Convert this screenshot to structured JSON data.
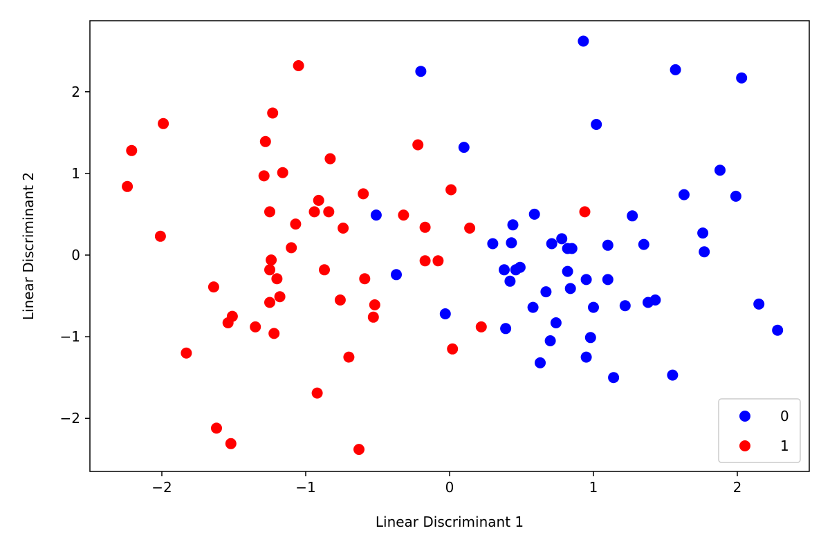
{
  "chart_data": {
    "type": "scatter",
    "xlabel": "Linear Discriminant 1",
    "ylabel": "Linear Discriminant 2",
    "xlim": [
      -2.5,
      2.5
    ],
    "ylim": [
      -2.65,
      2.87
    ],
    "xticks": [
      -2,
      -1,
      0,
      1,
      2
    ],
    "yticks": [
      -2,
      -1,
      0,
      1,
      2
    ],
    "xtick_labels": [
      "−2",
      "−1",
      "0",
      "1",
      "2"
    ],
    "ytick_labels": [
      "−2",
      "−1",
      "0",
      "1",
      "2"
    ],
    "legend_placement": "lower-right",
    "grid": false,
    "series": [
      {
        "name": "0",
        "color": "#0000ff",
        "points": [
          [
            0.93,
            2.62
          ],
          [
            -0.2,
            2.25
          ],
          [
            1.57,
            2.27
          ],
          [
            2.03,
            2.17
          ],
          [
            1.02,
            1.6
          ],
          [
            0.1,
            1.32
          ],
          [
            1.88,
            1.04
          ],
          [
            1.63,
            0.74
          ],
          [
            1.99,
            0.72
          ],
          [
            -0.51,
            0.49
          ],
          [
            0.59,
            0.5
          ],
          [
            1.27,
            0.48
          ],
          [
            0.44,
            0.37
          ],
          [
            1.76,
            0.27
          ],
          [
            0.78,
            0.2
          ],
          [
            0.3,
            0.14
          ],
          [
            0.43,
            0.15
          ],
          [
            0.71,
            0.14
          ],
          [
            0.82,
            0.08
          ],
          [
            0.85,
            0.08
          ],
          [
            1.1,
            0.12
          ],
          [
            1.35,
            0.13
          ],
          [
            1.77,
            0.04
          ],
          [
            0.38,
            -0.18
          ],
          [
            0.46,
            -0.18
          ],
          [
            0.49,
            -0.15
          ],
          [
            0.82,
            -0.2
          ],
          [
            0.42,
            -0.32
          ],
          [
            0.95,
            -0.3
          ],
          [
            1.1,
            -0.3
          ],
          [
            -0.37,
            -0.24
          ],
          [
            0.84,
            -0.41
          ],
          [
            0.67,
            -0.45
          ],
          [
            1.38,
            -0.58
          ],
          [
            1.43,
            -0.55
          ],
          [
            0.58,
            -0.64
          ],
          [
            1.0,
            -0.64
          ],
          [
            1.22,
            -0.62
          ],
          [
            2.15,
            -0.6
          ],
          [
            -0.03,
            -0.72
          ],
          [
            0.74,
            -0.83
          ],
          [
            0.39,
            -0.9
          ],
          [
            2.28,
            -0.92
          ],
          [
            0.7,
            -1.05
          ],
          [
            0.98,
            -1.01
          ],
          [
            0.63,
            -1.32
          ],
          [
            0.95,
            -1.25
          ],
          [
            1.14,
            -1.5
          ],
          [
            1.55,
            -1.47
          ]
        ]
      },
      {
        "name": "1",
        "color": "#ff0000",
        "points": [
          [
            -1.05,
            2.32
          ],
          [
            -1.23,
            1.74
          ],
          [
            -1.99,
            1.61
          ],
          [
            -2.21,
            1.28
          ],
          [
            -1.28,
            1.39
          ],
          [
            -0.22,
            1.35
          ],
          [
            -0.83,
            1.18
          ],
          [
            -2.24,
            0.84
          ],
          [
            -1.16,
            1.01
          ],
          [
            -1.29,
            0.97
          ],
          [
            0.01,
            0.8
          ],
          [
            -0.6,
            0.75
          ],
          [
            -0.91,
            0.67
          ],
          [
            -1.25,
            0.53
          ],
          [
            -0.94,
            0.53
          ],
          [
            -0.84,
            0.53
          ],
          [
            0.94,
            0.53
          ],
          [
            -0.32,
            0.49
          ],
          [
            -1.07,
            0.38
          ],
          [
            -0.74,
            0.33
          ],
          [
            -0.17,
            0.34
          ],
          [
            0.14,
            0.33
          ],
          [
            -2.01,
            0.23
          ],
          [
            -1.1,
            0.09
          ],
          [
            -1.24,
            -0.06
          ],
          [
            -0.17,
            -0.07
          ],
          [
            -0.08,
            -0.07
          ],
          [
            -1.25,
            -0.18
          ],
          [
            -0.87,
            -0.18
          ],
          [
            -1.2,
            -0.29
          ],
          [
            -0.59,
            -0.29
          ],
          [
            -1.64,
            -0.39
          ],
          [
            -1.18,
            -0.51
          ],
          [
            -1.25,
            -0.58
          ],
          [
            -0.76,
            -0.55
          ],
          [
            -0.52,
            -0.61
          ],
          [
            -1.51,
            -0.75
          ],
          [
            -1.54,
            -0.83
          ],
          [
            -0.53,
            -0.76
          ],
          [
            -1.35,
            -0.88
          ],
          [
            0.22,
            -0.88
          ],
          [
            -1.22,
            -0.96
          ],
          [
            -1.83,
            -1.2
          ],
          [
            0.02,
            -1.15
          ],
          [
            -0.7,
            -1.25
          ],
          [
            -0.92,
            -1.69
          ],
          [
            -1.62,
            -2.12
          ],
          [
            -1.52,
            -2.31
          ],
          [
            -0.63,
            -2.38
          ]
        ]
      }
    ]
  }
}
